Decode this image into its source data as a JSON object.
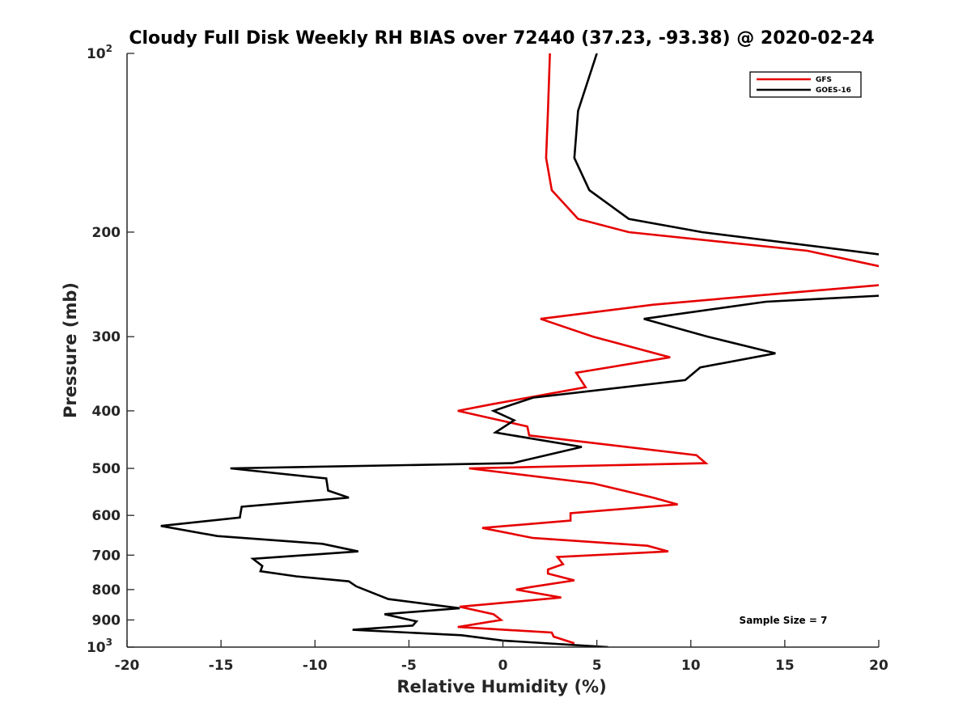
{
  "chart_data": {
    "type": "line",
    "title": "Cloudy Full Disk Weekly RH BIAS over 72440 (37.23, -93.38) @ 2020-02-24",
    "xlabel": "Relative Humidity (%)",
    "ylabel": "Pressure (mb)",
    "xlim": [
      -20,
      20
    ],
    "ylim": [
      100,
      1000
    ],
    "y_scale": "log",
    "y_reversed": true,
    "grid": false,
    "legend_position": "top-right",
    "x_ticks": [
      "-20",
      "-15",
      "-10",
      "-5",
      "0",
      "5",
      "10",
      "15",
      "20"
    ],
    "y_ticks": [
      {
        "value": 100,
        "base": "10",
        "exp": "2"
      },
      {
        "value": 200,
        "label": "200"
      },
      {
        "value": 300,
        "label": "300"
      },
      {
        "value": 400,
        "label": "400"
      },
      {
        "value": 500,
        "label": "500"
      },
      {
        "value": 600,
        "label": "600"
      },
      {
        "value": 700,
        "label": "700"
      },
      {
        "value": 800,
        "label": "800"
      },
      {
        "value": 900,
        "label": "900"
      },
      {
        "value": 1000,
        "base": "10",
        "exp": "3"
      }
    ],
    "annotation": "Sample Size = 7",
    "series": [
      {
        "name": "GFS",
        "color": "#e60000",
        "points": [
          [
            2.5,
            100
          ],
          [
            2.4,
            125
          ],
          [
            2.3,
            150
          ],
          [
            2.6,
            170
          ],
          [
            4.0,
            190
          ],
          [
            6.7,
            200
          ],
          [
            16.2,
            215
          ],
          [
            20.5,
            230
          ],
          [
            20.5,
            245
          ],
          [
            14.0,
            255
          ],
          [
            8.0,
            265
          ],
          [
            2.0,
            280
          ],
          [
            4.8,
            300
          ],
          [
            8.9,
            325
          ],
          [
            3.9,
            345
          ],
          [
            4.4,
            365
          ],
          [
            -0.6,
            390
          ],
          [
            -2.4,
            400
          ],
          [
            1.3,
            425
          ],
          [
            1.4,
            440
          ],
          [
            10.3,
            475
          ],
          [
            10.8,
            490
          ],
          [
            -1.8,
            500
          ],
          [
            4.8,
            530
          ],
          [
            8.0,
            560
          ],
          [
            9.3,
            575
          ],
          [
            3.6,
            595
          ],
          [
            3.6,
            612
          ],
          [
            -1.1,
            630
          ],
          [
            1.6,
            655
          ],
          [
            7.7,
            675
          ],
          [
            8.8,
            690
          ],
          [
            2.9,
            705
          ],
          [
            3.2,
            725
          ],
          [
            2.4,
            740
          ],
          [
            2.4,
            752
          ],
          [
            3.8,
            772
          ],
          [
            1.5,
            792
          ],
          [
            0.7,
            800
          ],
          [
            3.1,
            825
          ],
          [
            -2.3,
            855
          ],
          [
            -0.5,
            880
          ],
          [
            -0.1,
            900
          ],
          [
            -2.4,
            925
          ],
          [
            2.6,
            945
          ],
          [
            2.7,
            960
          ],
          [
            3.8,
            985
          ]
        ]
      },
      {
        "name": "GOES-16",
        "color": "#000000",
        "points": [
          [
            5.0,
            100
          ],
          [
            4.0,
            125
          ],
          [
            3.8,
            150
          ],
          [
            4.6,
            170
          ],
          [
            6.7,
            190
          ],
          [
            10.6,
            200
          ],
          [
            21.0,
            220
          ],
          [
            21.0,
            255
          ],
          [
            14.0,
            262
          ],
          [
            7.5,
            280
          ],
          [
            10.9,
            300
          ],
          [
            14.5,
            320
          ],
          [
            10.5,
            338
          ],
          [
            9.7,
            355
          ],
          [
            1.6,
            380
          ],
          [
            -0.5,
            400
          ],
          [
            0.6,
            415
          ],
          [
            -0.4,
            435
          ],
          [
            4.2,
            460
          ],
          [
            0.5,
            490
          ],
          [
            -14.5,
            500
          ],
          [
            -9.4,
            520
          ],
          [
            -9.3,
            545
          ],
          [
            -8.2,
            560
          ],
          [
            -13.9,
            580
          ],
          [
            -14.0,
            605
          ],
          [
            -18.2,
            625
          ],
          [
            -15.2,
            650
          ],
          [
            -9.6,
            670
          ],
          [
            -7.7,
            690
          ],
          [
            -13.3,
            710
          ],
          [
            -12.8,
            730
          ],
          [
            -12.9,
            745
          ],
          [
            -11.0,
            760
          ],
          [
            -8.2,
            775
          ],
          [
            -7.8,
            790
          ],
          [
            -6.1,
            830
          ],
          [
            -2.3,
            860
          ],
          [
            -6.3,
            880
          ],
          [
            -4.6,
            905
          ],
          [
            -4.8,
            920
          ],
          [
            -8.0,
            935
          ],
          [
            -2.2,
            955
          ],
          [
            0.0,
            975
          ],
          [
            5.6,
            1000
          ]
        ]
      }
    ]
  }
}
